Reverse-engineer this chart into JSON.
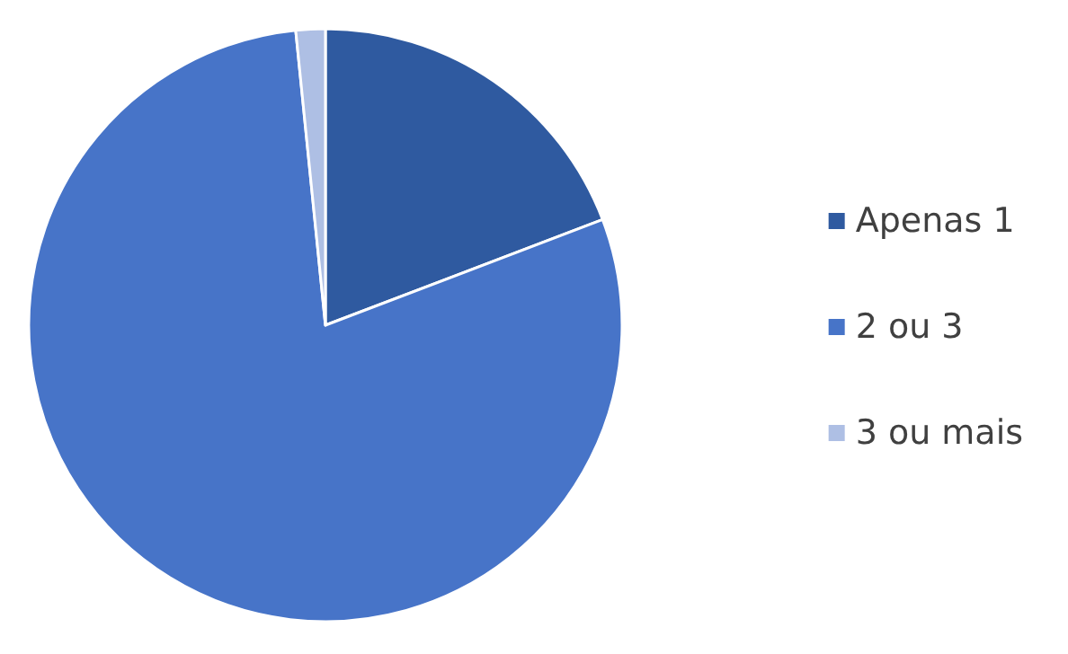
{
  "chart_data": {
    "type": "pie",
    "categories": [
      "Apenas 1",
      "2 ou 3",
      "3 ou mais"
    ],
    "values": [
      19.2,
      79.2,
      1.6
    ],
    "colors": [
      "#2f5aa0",
      "#4774c8",
      "#aebfe4"
    ],
    "legend": "right"
  }
}
